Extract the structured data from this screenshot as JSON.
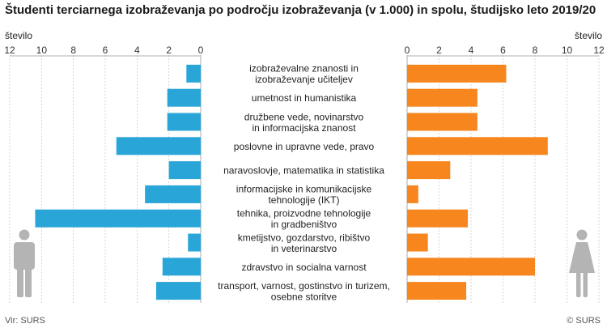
{
  "title": "Študenti terciarnega izobraževanja po področju izobraževanja (v 1.000) in spolu, študijsko leto 2019/20",
  "unit_left": "število",
  "unit_right": "število",
  "source": "Vir: SURS",
  "copyright": "© SURS",
  "colors": {
    "men": "#2aa5d8",
    "women": "#f7861e",
    "icon": "#b4b4b4",
    "grid": "#bbbbbb"
  },
  "icons": {
    "men": "male-figure-icon",
    "women": "female-figure-icon"
  },
  "chart_data": {
    "type": "bar",
    "orientation": "horizontal-butterfly",
    "title": "Študenti terciarnega izobraževanja po področju izobraževanja (v 1.000) in spolu, študijsko leto 2019/20",
    "xlabel": "število",
    "xlim": [
      0,
      12
    ],
    "ticks": [
      "0",
      "2",
      "4",
      "6",
      "8",
      "10",
      "12"
    ],
    "categories": [
      [
        "izobraževalne znanosti in",
        "izobraževanje učiteljev"
      ],
      [
        "umetnost in humanistika"
      ],
      [
        "družbene vede, novinarstvo",
        "in informacijska znanost"
      ],
      [
        "poslovne in upravne vede, pravo"
      ],
      [
        "naravoslovje, matematika in statistika"
      ],
      [
        "informacijske in komunikacijske",
        "tehnologije (IKT)"
      ],
      [
        "tehnika, proizvodne tehnologije",
        "in gradbeništvo"
      ],
      [
        "kmetijstvo, gozdarstvo, ribištvo",
        "in veterinarstvo"
      ],
      [
        "zdravstvo in socialna varnost"
      ],
      [
        "transport, varnost, gostinstvo in turizem,",
        "osebne storitve"
      ]
    ],
    "series": [
      {
        "name": "moški",
        "side": "left",
        "values": [
          0.9,
          2.1,
          2.1,
          5.3,
          2.0,
          3.5,
          10.4,
          0.8,
          2.4,
          2.8
        ]
      },
      {
        "name": "ženske",
        "side": "right",
        "values": [
          6.2,
          4.4,
          4.4,
          8.8,
          2.7,
          0.7,
          3.8,
          1.3,
          8.0,
          3.7
        ]
      }
    ]
  }
}
